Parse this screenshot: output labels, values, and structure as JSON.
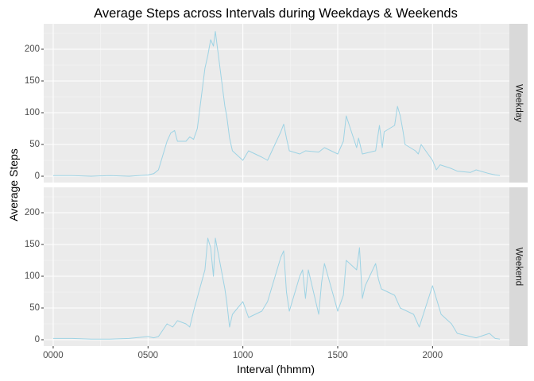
{
  "chart_data": {
    "type": "line",
    "title": "Average Steps across Intervals during Weekdays & Weekends",
    "xlabel": "Interval (hhmm)",
    "ylabel": "Average Steps",
    "xlim": [
      -50,
      2405
    ],
    "ylim": [
      -10,
      240
    ],
    "x_ticks": [
      0,
      500,
      1000,
      1500,
      2000
    ],
    "x_tick_labels": [
      "0000",
      "0500",
      "1000",
      "1500",
      "2000"
    ],
    "y_ticks": [
      0,
      50,
      100,
      150,
      200
    ],
    "y_tick_labels": [
      "0",
      "50",
      "100",
      "150",
      "200"
    ],
    "grid": true,
    "line_color": "#9ed3e4",
    "panel_bg": "#ebebeb",
    "strip_bg": "#d9d9d9",
    "panels": [
      {
        "name": "Weekday",
        "x": [
          0,
          100,
          200,
          300,
          400,
          450,
          500,
          530,
          555,
          570,
          600,
          620,
          640,
          655,
          700,
          720,
          740,
          760,
          800,
          815,
          830,
          845,
          855,
          905,
          915,
          930,
          945,
          1000,
          1030,
          1100,
          1130,
          1200,
          1215,
          1230,
          1245,
          1300,
          1330,
          1400,
          1430,
          1500,
          1530,
          1545,
          1600,
          1610,
          1630,
          1700,
          1720,
          1735,
          1745,
          1800,
          1815,
          1830,
          1845,
          1855,
          1910,
          1925,
          1940,
          2000,
          2020,
          2040,
          2100,
          2130,
          2200,
          2230,
          2300,
          2330,
          2355
        ],
        "values": [
          1,
          1,
          0,
          1,
          0,
          1,
          2,
          4,
          10,
          25,
          55,
          68,
          72,
          55,
          55,
          62,
          58,
          75,
          170,
          190,
          215,
          205,
          228,
          110,
          95,
          60,
          40,
          25,
          40,
          30,
          25,
          70,
          82,
          60,
          40,
          35,
          40,
          38,
          45,
          35,
          55,
          95,
          45,
          60,
          35,
          40,
          80,
          45,
          70,
          80,
          110,
          95,
          70,
          50,
          40,
          35,
          50,
          25,
          10,
          18,
          12,
          8,
          6,
          10,
          4,
          2,
          1
        ]
      },
      {
        "name": "Weekend",
        "x": [
          0,
          100,
          200,
          300,
          400,
          500,
          530,
          555,
          600,
          630,
          655,
          700,
          720,
          740,
          800,
          815,
          830,
          845,
          855,
          905,
          915,
          930,
          945,
          1000,
          1030,
          1100,
          1130,
          1200,
          1215,
          1230,
          1245,
          1300,
          1315,
          1330,
          1345,
          1400,
          1415,
          1430,
          1500,
          1530,
          1545,
          1600,
          1615,
          1630,
          1645,
          1700,
          1715,
          1730,
          1800,
          1830,
          1900,
          1930,
          2000,
          2015,
          2030,
          2045,
          2100,
          2130,
          2200,
          2230,
          2300,
          2330,
          2355
        ],
        "values": [
          2,
          2,
          1,
          1,
          2,
          5,
          3,
          5,
          25,
          20,
          30,
          25,
          20,
          45,
          110,
          160,
          145,
          100,
          160,
          80,
          60,
          20,
          40,
          60,
          35,
          45,
          60,
          130,
          140,
          75,
          45,
          100,
          110,
          65,
          110,
          40,
          90,
          120,
          45,
          70,
          125,
          110,
          145,
          65,
          85,
          120,
          95,
          80,
          70,
          50,
          40,
          20,
          85,
          70,
          55,
          40,
          25,
          10,
          5,
          3,
          10,
          2,
          1
        ]
      }
    ]
  }
}
